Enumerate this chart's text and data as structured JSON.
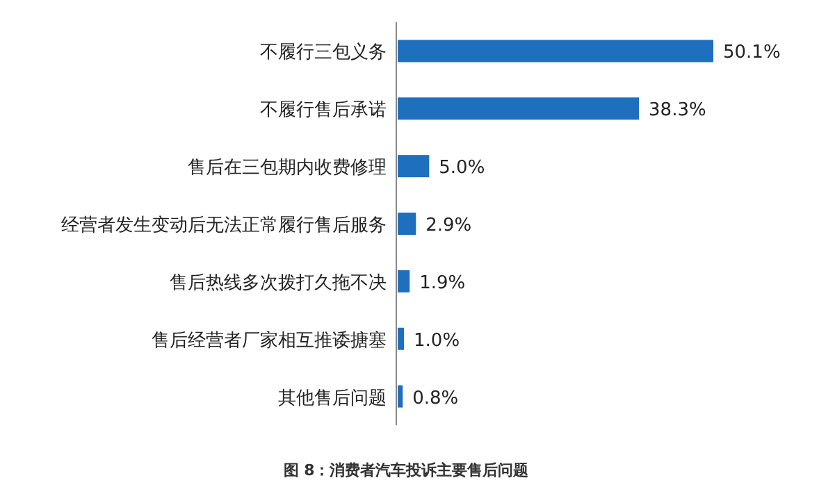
{
  "chart_data": {
    "type": "bar",
    "orientation": "horizontal",
    "title": "图 8：消费者汽车投诉主要售后问题",
    "categories": [
      "不履行三包义务",
      "不履行售后承诺",
      "售后在三包期内收费修理",
      "经营者发生变动后无法正常履行售后服务",
      "售后热线多次拨打久拖不决",
      "售后经营者厂家相互推诿搪塞",
      "其他售后问题"
    ],
    "values": [
      50.1,
      38.3,
      5.0,
      2.9,
      1.9,
      1.0,
      0.8
    ],
    "value_labels": [
      "50.1%",
      "38.3%",
      "5.0%",
      "2.9%",
      "1.9%",
      "1.0%",
      "0.8%"
    ],
    "color": "#1f6fbf"
  }
}
